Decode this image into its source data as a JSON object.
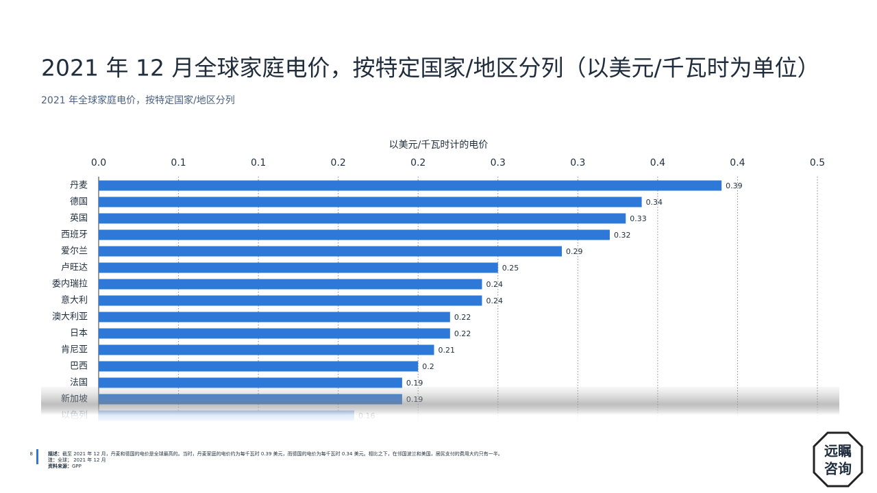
{
  "title": "2021 年 12 月全球家庭电价，按特定国家/地区分列（以美元/千瓦时为单位）",
  "subtitle": "2021 年全球家庭电价，按特定国家/地区分列",
  "chart_data": {
    "type": "bar",
    "orientation": "horizontal",
    "x_label": "以美元/千瓦时计的电价",
    "categories": [
      "丹麦",
      "德国",
      "英国",
      "西班牙",
      "爱尔兰",
      "卢旺达",
      "委内瑞拉",
      "意大利",
      "澳大利亚",
      "日本",
      "肯尼亚",
      "巴西",
      "法国",
      "新加坡",
      "以色列"
    ],
    "values": [
      0.39,
      0.34,
      0.33,
      0.32,
      0.29,
      0.25,
      0.24,
      0.24,
      0.22,
      0.22,
      0.21,
      0.2,
      0.19,
      0.19,
      0.16
    ],
    "color": "#2e78d8",
    "xlim": [
      0,
      0.45
    ],
    "xticks": [
      {
        "value": 0,
        "label": "0.0"
      },
      {
        "value": 0.05,
        "label": "0.1"
      },
      0.1,
      {
        "value": 0.15,
        "label": "0.2"
      },
      0.2,
      {
        "value": 0.25,
        "label": "0.3"
      },
      0.3,
      {
        "value": 0.35,
        "label": "0.4"
      },
      0.4,
      {
        "value": 0.45,
        "label": "0.5"
      }
    ],
    "grid": true
  },
  "footer": {
    "page": "8",
    "description_label": "描述：",
    "description": "截至 2021 年 12 月，丹麦和德国的电价是全球最高的。当时，丹麦家庭的电价约为每千瓦时 0.39 美元，而德国的电价为每千瓦时 0.34 美元。相比之下，在邻国波兰和美国，居民支付的费用大约只有一半。",
    "note_label": "注：",
    "note": "全球；  2021 年 12 月",
    "source_label": "资料来源：",
    "source": "GPP"
  },
  "logo": {
    "line1": "远瞩",
    "line2": "咨询"
  }
}
